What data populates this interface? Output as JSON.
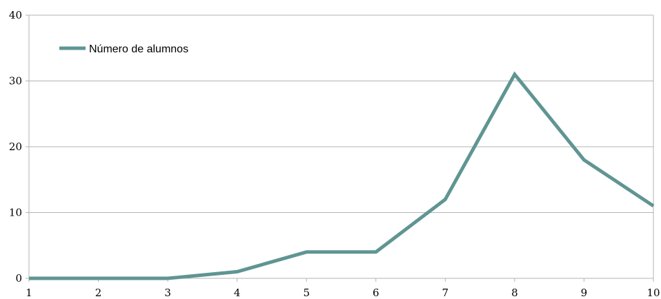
{
  "chart_data": {
    "type": "line",
    "title": "",
    "xlabel": "",
    "ylabel": "",
    "x": [
      1,
      2,
      3,
      4,
      5,
      6,
      7,
      8,
      9,
      10
    ],
    "series": [
      {
        "name": "Número de alumnos",
        "values": [
          0,
          0,
          0,
          1,
          4,
          4,
          12,
          31,
          18,
          11
        ],
        "color": "#5f9593"
      }
    ],
    "xlim": [
      1,
      10
    ],
    "ylim": [
      0,
      40
    ],
    "yticks": [
      0,
      10,
      20,
      30,
      40
    ],
    "xticks": [
      1,
      2,
      3,
      4,
      5,
      6,
      7,
      8,
      9,
      10
    ],
    "grid": {
      "horizontal": true,
      "vertical": false,
      "color": "#b3b3b3"
    },
    "legend": {
      "placement": "top-left"
    }
  }
}
